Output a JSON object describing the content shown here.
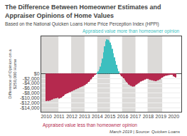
{
  "chart_data": {
    "type": "bar",
    "title": "The Difference Between Homeowner Estimates and Appraiser Opinions of Home Values",
    "subtitle": "Based on the National Quicken Loans Home Price Perception Index (HPPI)",
    "ylabel": "Difference of Opinion on a $250,000 Home",
    "annotations": [
      {
        "text": "Appraised value more than homeowner opinion",
        "color": "#3dbfbf"
      },
      {
        "text": "Appraised value less than homeowner opinion",
        "color": "#b5294e"
      },
      {
        "text": "March 2019 | Source: Quicken Loans"
      }
    ],
    "x": [
      2010,
      2010.0833333333333,
      2010.1666666666667,
      2010.25,
      2010.3333333333333,
      2010.4166666666667,
      2010.5,
      2010.5833333333333,
      2010.6666666666667,
      2010.75,
      2010.8333333333333,
      2010.9166666666667,
      2011,
      2011.0833333333333,
      2011.1666666666667,
      2011.25,
      2011.3333333333333,
      2011.4166666666667,
      2011.5,
      2011.5833333333333,
      2011.6666666666667,
      2011.75,
      2011.8333333333333,
      2011.9166666666667,
      2012,
      2012.0833333333333,
      2012.1666666666667,
      2012.25,
      2012.3333333333333,
      2012.4166666666667,
      2012.5,
      2012.5833333333333,
      2012.6666666666667,
      2012.75,
      2012.8333333333333,
      2012.9166666666667,
      2013,
      2013.0833333333333,
      2013.1666666666667,
      2013.25,
      2013.3333333333333,
      2013.4166666666667,
      2013.5,
      2013.5833333333333,
      2013.6666666666667,
      2013.75,
      2013.8333333333333,
      2013.9166666666667,
      2014,
      2014.0833333333333,
      2014.1666666666667,
      2014.25,
      2014.3333333333333,
      2014.4166666666667,
      2014.5,
      2014.5833333333333,
      2014.6666666666667,
      2014.75,
      2014.8333333333333,
      2014.9166666666667,
      2015,
      2015.0833333333333,
      2015.1666666666667,
      2015.25,
      2015.3333333333333,
      2015.4166666666667,
      2015.5,
      2015.5833333333333,
      2015.6666666666667,
      2015.75,
      2015.8333333333333,
      2015.9166666666667,
      2016,
      2016.0833333333333,
      2016.1666666666667,
      2016.25,
      2016.3333333333333,
      2016.4166666666667,
      2016.5,
      2016.5833333333333,
      2016.6666666666667,
      2016.75,
      2016.8333333333333,
      2016.9166666666667,
      2017,
      2017.0833333333333,
      2017.1666666666667,
      2017.25,
      2017.3333333333333,
      2017.4166666666667,
      2017.5,
      2017.5833333333333,
      2017.6666666666667,
      2017.75,
      2017.8333333333333,
      2017.9166666666667,
      2018,
      2018.0833333333333,
      2018.1666666666667,
      2018.25,
      2018.3333333333333,
      2018.4166666666667,
      2018.5,
      2018.5833333333333,
      2018.6666666666667,
      2018.75,
      2018.8333333333333,
      2018.9166666666667,
      2019,
      2019.0833333333333,
      2019.1666666666667,
      2019.25,
      2019.3333333333333,
      2019.4166666666667,
      2019.5,
      2019.5833333333333,
      2019.6666666666667,
      2019.75,
      2019.8333333333333,
      2019.9166666666667,
      2020,
      2020.0833333333333,
      2020.1666666666667
    ],
    "values": [
      -11200,
      -11000,
      -11100,
      -11000,
      -10800,
      -10600,
      -10400,
      -10200,
      -10100,
      -10000,
      -9900,
      -9800,
      -10200,
      -10000,
      -9800,
      -9500,
      -9200,
      -8800,
      -8400,
      -8200,
      -8000,
      -7800,
      -7600,
      -7500,
      -7200,
      -7000,
      -6800,
      -6600,
      -6400,
      -6200,
      -6000,
      -5800,
      -5600,
      -5400,
      -5200,
      -5000,
      -4800,
      -4500,
      -4200,
      -3800,
      -3400,
      -2900,
      -2400,
      -1900,
      -1400,
      -900,
      -500,
      -200,
      200,
      800,
      1600,
      2800,
      4200,
      6000,
      8500,
      11000,
      13000,
      13800,
      13600,
      13200,
      12500,
      11500,
      10000,
      8200,
      6500,
      5000,
      3500,
      2000,
      800,
      -100,
      -700,
      -1200,
      -1500,
      -2000,
      -2500,
      -3000,
      -3500,
      -4000,
      -4500,
      -4800,
      -5000,
      -5200,
      -5300,
      -5200,
      -4800,
      -4500,
      -4200,
      -3900,
      -3600,
      -3300,
      -3100,
      -2900,
      -2700,
      -2500,
      -2300,
      -2100,
      -2200,
      -2400,
      -2600,
      -2700,
      -2800,
      -2900,
      -3000,
      -3100,
      -3000,
      -2800,
      -2600,
      -2400,
      -2000,
      -1700,
      -1500,
      -1200,
      -1000,
      -900,
      -800,
      -700,
      -600,
      -500,
      -400,
      -300,
      -1200,
      -1400,
      -1600
    ],
    "colors": [
      "#b5294e",
      "#b5294e",
      "#b5294e",
      "#b5294e",
      "#b5294e",
      "#b5294e",
      "#b5294e",
      "#b5294e",
      "#b5294e",
      "#b5294e",
      "#b5294e",
      "#b5294e",
      "#b5294e",
      "#b5294e",
      "#b5294e",
      "#b5294e",
      "#b5294e",
      "#b5294e",
      "#b5294e",
      "#b5294e",
      "#b5294e",
      "#b5294e",
      "#b5294e",
      "#b5294e",
      "#b5294e",
      "#b5294e",
      "#b5294e",
      "#b5294e",
      "#b5294e",
      "#b5294e",
      "#b5294e",
      "#b5294e",
      "#b5294e",
      "#b5294e",
      "#b5294e",
      "#b5294e",
      "#b5294e",
      "#b5294e",
      "#b5294e",
      "#b5294e",
      "#b5294e",
      "#b5294e",
      "#b5294e",
      "#b5294e",
      "#b5294e",
      "#b5294e",
      "#b5294e",
      "#b5294e",
      "#3dbfbf",
      "#3dbfbf",
      "#3dbfbf",
      "#3dbfbf",
      "#3dbfbf",
      "#3dbfbf",
      "#3dbfbf",
      "#3dbfbf",
      "#3dbfbf",
      "#3dbfbf",
      "#3dbfbf",
      "#3dbfbf",
      "#3dbfbf",
      "#3dbfbf",
      "#3dbfbf",
      "#3dbfbf",
      "#3dbfbf",
      "#3dbfbf",
      "#3dbfbf",
      "#3dbfbf",
      "#3dbfbf",
      "#b5294e",
      "#b5294e",
      "#b5294e",
      "#b5294e",
      "#b5294e",
      "#b5294e",
      "#b5294e",
      "#b5294e",
      "#b5294e",
      "#b5294e",
      "#b5294e",
      "#b5294e",
      "#b5294e",
      "#b5294e",
      "#b5294e",
      "#b5294e",
      "#b5294e",
      "#b5294e",
      "#b5294e",
      "#b5294e",
      "#b5294e",
      "#b5294e",
      "#b5294e",
      "#b5294e",
      "#b5294e",
      "#b5294e",
      "#b5294e",
      "#b5294e",
      "#b5294e",
      "#b5294e",
      "#b5294e",
      "#b5294e",
      "#b5294e",
      "#b5294e",
      "#b5294e",
      "#b5294e",
      "#b5294e",
      "#b5294e",
      "#b5294e",
      "#b5294e",
      "#b5294e",
      "#b5294e",
      "#b5294e",
      "#b5294e",
      "#b5294e",
      "#b5294e",
      "#b5294e",
      "#b5294e",
      "#b5294e",
      "#b5294e",
      "#b5294e",
      "#b5294e",
      "#b5294e",
      "#b5294e"
    ],
    "xlim": [
      2009.6,
      2020.6
    ],
    "xticks": [
      2010,
      2011,
      2012,
      2013,
      2014,
      2015,
      2016,
      2017,
      2018,
      2019,
      2020
    ],
    "ylim": [
      -15500,
      15000
    ],
    "yticks": [
      {
        "value": 0,
        "label": "$0"
      },
      {
        "value": -2000,
        "label": "-$2,000"
      },
      {
        "value": -4000,
        "label": "-$4,000"
      },
      {
        "value": -6000,
        "label": "-$6,000"
      },
      {
        "value": -8000,
        "label": "-$8,000"
      },
      {
        "value": -10000,
        "label": "-$10,000"
      },
      {
        "value": -12000,
        "label": "-$12,000"
      },
      {
        "value": -14000,
        "label": "-$14,000"
      }
    ],
    "grid": "y",
    "shaded_bands": [
      [
        2009.6,
        2010.95
      ],
      [
        2011.95,
        2013.0
      ],
      [
        2014.0,
        2015.0
      ],
      [
        2015.95,
        2017.0
      ],
      [
        2017.95,
        2019.1
      ]
    ],
    "band_color": "#dcdad8"
  }
}
